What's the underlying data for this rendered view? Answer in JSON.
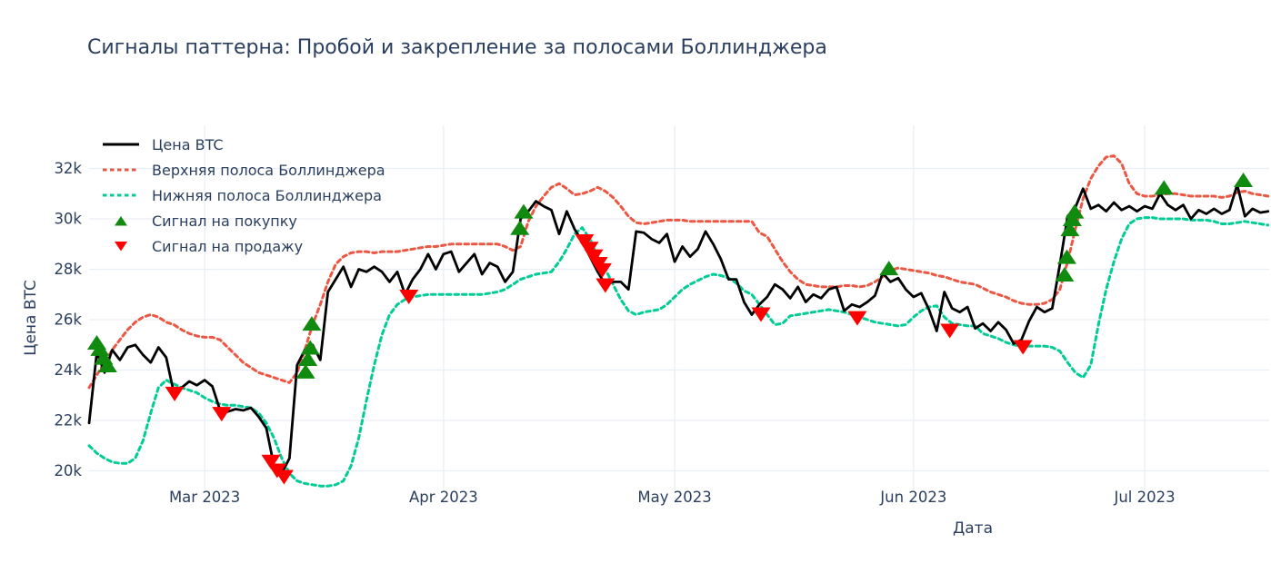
{
  "colors": {
    "price": "#000000",
    "upper_band": "#eb5743",
    "lower_band": "#00cc96",
    "buy": "#108b10",
    "sell": "#ff0000",
    "grid": "#e9eef4",
    "text": "#2a3f5f",
    "background": "#ffffff"
  },
  "chart_data": {
    "type": "line",
    "title": "Сигналы паттерна: Пробой и закрепление за полосами Боллинджера",
    "xlabel": "Дата",
    "ylabel": "Цена BTC",
    "start_date": "2023-02-14",
    "x_unit": "day-index from 2023-02-14, 1 point per day",
    "xlim_days": [
      0,
      153
    ],
    "ylim": [
      19.2,
      33.2
    ],
    "grid": true,
    "legend_position": "top-left-inside",
    "x_ticks": [
      {
        "day": 15,
        "label": "Mar 2023"
      },
      {
        "day": 46,
        "label": "Apr 2023"
      },
      {
        "day": 76,
        "label": "May 2023"
      },
      {
        "day": 107,
        "label": "Jun 2023"
      },
      {
        "day": 137,
        "label": "Jul 2023"
      }
    ],
    "y_ticks": [
      {
        "value": 20,
        "label": "20k"
      },
      {
        "value": 22,
        "label": "22k"
      },
      {
        "value": 24,
        "label": "24k"
      },
      {
        "value": 26,
        "label": "26k"
      },
      {
        "value": 28,
        "label": "28k"
      },
      {
        "value": 30,
        "label": "30k"
      },
      {
        "value": 32,
        "label": "32k"
      }
    ],
    "series": [
      {
        "name": "Цена BTC",
        "style": "solid",
        "color_key": "price",
        "values": [
          21.9,
          24.7,
          23.9,
          24.8,
          24.4,
          24.9,
          25.0,
          24.6,
          24.3,
          24.9,
          24.5,
          23.1,
          23.3,
          23.55,
          23.4,
          23.6,
          23.35,
          22.4,
          22.35,
          22.45,
          22.4,
          22.5,
          22.15,
          21.7,
          20.2,
          19.9,
          20.5,
          24.2,
          24.8,
          25.0,
          24.4,
          27.1,
          27.6,
          28.1,
          27.3,
          28.0,
          27.9,
          28.1,
          27.9,
          27.5,
          27.9,
          27.0,
          27.6,
          28.0,
          28.6,
          28.0,
          28.6,
          28.7,
          27.9,
          28.25,
          28.6,
          27.8,
          28.25,
          28.1,
          27.5,
          27.9,
          30.0,
          30.3,
          30.7,
          30.5,
          30.35,
          29.4,
          30.3,
          29.6,
          29.1,
          28.5,
          27.9,
          27.4,
          27.5,
          27.5,
          27.2,
          29.5,
          29.45,
          29.2,
          29.05,
          29.4,
          28.3,
          28.9,
          28.5,
          28.8,
          29.5,
          29.0,
          28.4,
          27.6,
          27.6,
          26.7,
          26.2,
          26.6,
          26.9,
          27.4,
          27.2,
          26.85,
          27.3,
          26.7,
          27.0,
          26.85,
          27.2,
          27.3,
          26.35,
          26.6,
          26.5,
          26.7,
          26.95,
          27.85,
          27.5,
          27.65,
          27.2,
          26.9,
          27.05,
          26.4,
          25.55,
          27.1,
          26.45,
          26.3,
          26.5,
          25.65,
          25.85,
          25.55,
          25.9,
          25.6,
          25.05,
          25.2,
          25.95,
          26.5,
          26.3,
          26.45,
          28.2,
          30.1,
          30.45,
          31.2,
          30.4,
          30.55,
          30.3,
          30.65,
          30.35,
          30.5,
          30.3,
          30.5,
          30.4,
          31.0,
          30.55,
          30.35,
          30.55,
          30.0,
          30.35,
          30.2,
          30.4,
          30.2,
          30.35,
          31.35,
          30.1,
          30.4,
          30.25,
          30.3
        ]
      },
      {
        "name": "Верхняя полоса Боллинджера",
        "style": "dotted",
        "color_key": "upper_band",
        "values": [
          23.3,
          23.8,
          24.3,
          24.8,
          25.2,
          25.6,
          25.9,
          26.1,
          26.2,
          26.1,
          25.9,
          25.8,
          25.6,
          25.45,
          25.35,
          25.3,
          25.3,
          25.2,
          24.9,
          24.6,
          24.3,
          24.1,
          23.9,
          23.8,
          23.7,
          23.6,
          23.5,
          23.9,
          24.8,
          25.8,
          26.6,
          27.5,
          28.2,
          28.5,
          28.65,
          28.7,
          28.7,
          28.65,
          28.7,
          28.7,
          28.7,
          28.75,
          28.8,
          28.85,
          28.9,
          28.9,
          28.95,
          29.0,
          29.0,
          29.0,
          29.0,
          29.0,
          29.0,
          29.0,
          28.9,
          28.75,
          28.9,
          29.9,
          30.5,
          30.9,
          31.25,
          31.4,
          31.2,
          30.95,
          31.0,
          31.1,
          31.25,
          31.1,
          30.85,
          30.5,
          30.1,
          29.85,
          29.8,
          29.85,
          29.9,
          29.95,
          29.95,
          29.95,
          29.9,
          29.9,
          29.9,
          29.9,
          29.9,
          29.9,
          29.9,
          29.9,
          29.9,
          29.45,
          29.3,
          28.8,
          28.3,
          27.9,
          27.6,
          27.4,
          27.35,
          27.3,
          27.3,
          27.3,
          27.35,
          27.35,
          27.3,
          27.35,
          27.5,
          27.7,
          27.95,
          28.05,
          28.0,
          27.95,
          27.9,
          27.85,
          27.75,
          27.7,
          27.6,
          27.5,
          27.45,
          27.4,
          27.25,
          27.1,
          27.0,
          26.9,
          26.75,
          26.65,
          26.6,
          26.6,
          26.65,
          26.8,
          27.2,
          28.3,
          29.6,
          30.8,
          31.6,
          32.1,
          32.45,
          32.5,
          32.2,
          31.4,
          31.0,
          30.9,
          30.9,
          30.95,
          31.0,
          31.0,
          30.95,
          30.9,
          30.9,
          30.9,
          30.9,
          30.85,
          30.9,
          31.05,
          31.1,
          31.0,
          30.95,
          30.9
        ]
      },
      {
        "name": "Нижняя полоса Боллинджера",
        "style": "dotted",
        "color_key": "lower_band",
        "values": [
          21.0,
          20.7,
          20.5,
          20.35,
          20.3,
          20.3,
          20.5,
          21.2,
          22.3,
          23.3,
          23.6,
          23.45,
          23.3,
          23.2,
          23.1,
          22.9,
          22.75,
          22.65,
          22.6,
          22.6,
          22.55,
          22.5,
          22.3,
          21.9,
          21.3,
          20.5,
          19.9,
          19.6,
          19.5,
          19.45,
          19.4,
          19.4,
          19.45,
          19.6,
          20.2,
          21.3,
          22.8,
          24.2,
          25.4,
          26.2,
          26.6,
          26.8,
          26.9,
          26.95,
          27.0,
          27.0,
          27.0,
          27.0,
          27.0,
          27.0,
          27.0,
          27.0,
          27.05,
          27.1,
          27.2,
          27.4,
          27.6,
          27.7,
          27.8,
          27.85,
          27.9,
          28.3,
          28.8,
          29.4,
          29.65,
          29.2,
          28.5,
          28.0,
          27.4,
          26.8,
          26.35,
          26.2,
          26.3,
          26.35,
          26.4,
          26.6,
          26.9,
          27.2,
          27.4,
          27.55,
          27.7,
          27.8,
          27.75,
          27.65,
          27.45,
          27.15,
          27.0,
          26.6,
          26.2,
          25.8,
          25.85,
          26.15,
          26.2,
          26.25,
          26.3,
          26.35,
          26.4,
          26.35,
          26.3,
          26.2,
          26.1,
          26.0,
          25.9,
          25.85,
          25.8,
          25.75,
          25.8,
          26.1,
          26.35,
          26.5,
          26.55,
          26.1,
          25.85,
          25.8,
          25.75,
          25.75,
          25.45,
          25.35,
          25.25,
          25.1,
          25.0,
          24.95,
          24.95,
          24.95,
          24.95,
          24.9,
          24.75,
          24.3,
          23.9,
          23.7,
          24.2,
          25.8,
          27.2,
          28.3,
          29.2,
          29.8,
          30.0,
          30.05,
          30.05,
          30.0,
          30.0,
          30.0,
          30.0,
          29.95,
          29.95,
          29.95,
          29.9,
          29.8,
          29.8,
          29.85,
          29.9,
          29.85,
          29.8,
          29.75
        ]
      }
    ],
    "signals": {
      "buy": {
        "name": "Сигнал на покупку",
        "marker": "triangle-up",
        "color_key": "buy",
        "points": [
          [
            1.0,
            25.1
          ],
          [
            1.4,
            24.85
          ],
          [
            1.9,
            24.5
          ],
          [
            2.4,
            24.2
          ],
          [
            28.1,
            23.95
          ],
          [
            28.4,
            24.45
          ],
          [
            28.7,
            24.9
          ],
          [
            28.9,
            25.85
          ],
          [
            55.9,
            29.65
          ],
          [
            56.4,
            30.3
          ],
          [
            103.8,
            28.05
          ],
          [
            126.6,
            27.8
          ],
          [
            126.9,
            28.5
          ],
          [
            127.3,
            29.6
          ],
          [
            127.6,
            30.0
          ],
          [
            127.9,
            30.3
          ],
          [
            139.5,
            31.25
          ],
          [
            149.8,
            31.55
          ]
        ]
      },
      "sell": {
        "name": "Сигнал на продажу",
        "marker": "triangle-down",
        "color_key": "sell",
        "points": [
          [
            11.1,
            23.05
          ],
          [
            17.2,
            22.25
          ],
          [
            23.6,
            20.35
          ],
          [
            24.4,
            20.0
          ],
          [
            25.3,
            19.75
          ],
          [
            41.5,
            26.9
          ],
          [
            64.3,
            29.1
          ],
          [
            64.9,
            28.8
          ],
          [
            65.5,
            28.5
          ],
          [
            66.1,
            28.2
          ],
          [
            66.6,
            27.95
          ],
          [
            67.0,
            27.35
          ],
          [
            87.2,
            26.2
          ],
          [
            99.7,
            26.05
          ],
          [
            111.7,
            25.55
          ],
          [
            121.2,
            24.9
          ]
        ]
      }
    }
  }
}
